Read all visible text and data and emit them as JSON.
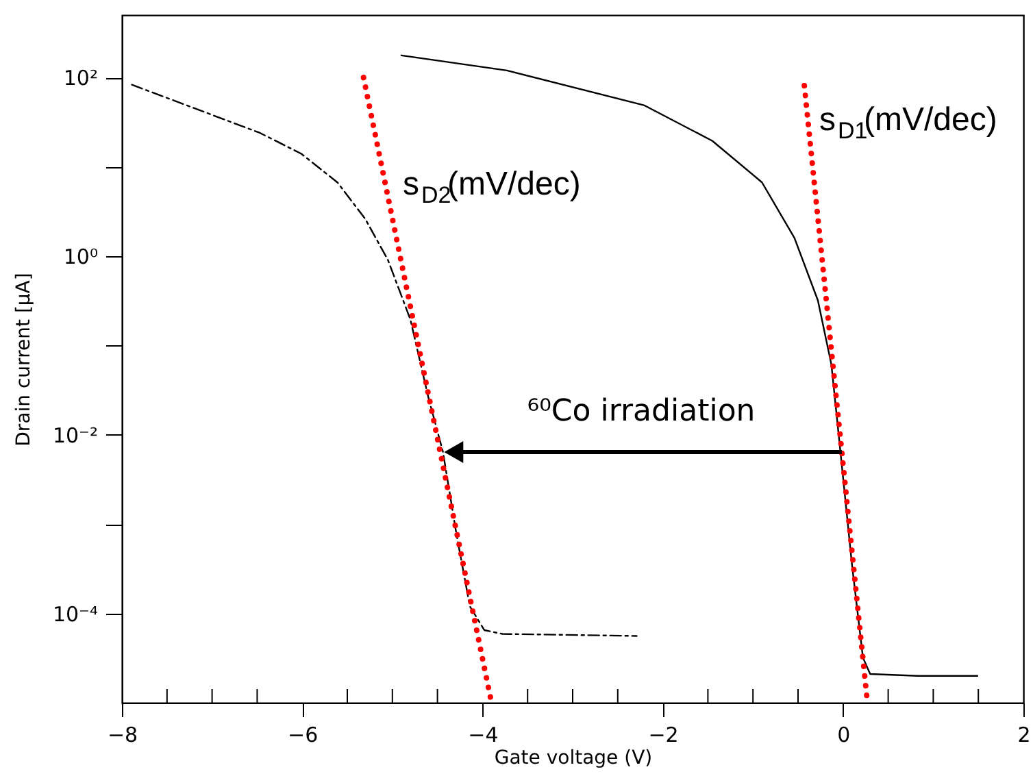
{
  "chart_data": {
    "type": "line",
    "xlabel": "Gate voltage (V)",
    "ylabel": "Drain current [μA]",
    "log": "y",
    "grid": false,
    "marker": "none",
    "xlim": [
      -8,
      2
    ],
    "ylim": [
      1e-05,
      500
    ],
    "xticks": [
      -8,
      {
        "value": -7.5,
        "label": null
      },
      {
        "value": -7,
        "label": null
      },
      {
        "value": -6.5,
        "label": null
      },
      -6,
      {
        "value": -5.5,
        "label": null
      },
      {
        "value": -5,
        "label": null
      },
      {
        "value": -4.5,
        "label": null
      },
      -4,
      {
        "value": -3.5,
        "label": null
      },
      {
        "value": -3,
        "label": null
      },
      {
        "value": -2.5,
        "label": null
      },
      -2,
      {
        "value": -1.5,
        "label": null
      },
      {
        "value": -1,
        "label": null
      },
      {
        "value": -0.5,
        "label": null
      },
      0,
      {
        "value": 0.5,
        "label": null
      },
      {
        "value": 1,
        "label": null
      },
      {
        "value": 1.5,
        "label": null
      },
      2
    ],
    "yticks": [
      {
        "value": 100,
        "label": "10²"
      },
      {
        "value": 10,
        "label": null
      },
      {
        "value": 1,
        "label": "10⁰"
      },
      {
        "value": 0.1,
        "label": null
      },
      {
        "value": 0.01,
        "label": "10⁻²"
      },
      {
        "value": 0.001,
        "label": null
      },
      {
        "value": 0.0001,
        "label": "10⁻⁴"
      }
    ],
    "series": [
      {
        "color": "#000000",
        "line_style": "solid",
        "x": [
          -4.9,
          -3.73,
          -2.21,
          -1.45,
          -0.9,
          -0.54,
          -0.28,
          -0.13,
          -0.03,
          0.1,
          0.22,
          0.3,
          0.83,
          1.49
        ],
        "values": [
          177,
          120,
          49,
          19.5,
          6.7,
          1.6,
          0.32,
          0.061,
          0.0065,
          0.00034,
          3.2e-05,
          2.1e-05,
          2e-05,
          2e-05
        ]
      },
      {
        "color": "#000000",
        "line_style": "dashed",
        "x": [
          -7.89,
          -6.47,
          -6.01,
          -5.61,
          -5.3,
          -5.05,
          -4.8,
          -4.6,
          -4.44,
          -4.29,
          -4.14,
          -3.98,
          -3.78,
          -2.29
        ],
        "values": [
          83,
          24,
          14,
          6.7,
          2.6,
          0.91,
          0.195,
          0.026,
          0.0065,
          0.00078,
          0.00012,
          6.5e-05,
          5.9e-05,
          5.6e-05
        ]
      },
      {
        "color": "#ff0000",
        "line_style": "dotted",
        "x": [
          -0.43,
          0.27
        ],
        "values": [
          81,
          1e-05
        ]
      },
      {
        "color": "#ff0000",
        "line_style": "dotted",
        "x": [
          -5.32,
          -3.9
        ],
        "values": [
          100,
          1e-05
        ]
      }
    ],
    "annotations": [
      "s$_{D1}$(mV/dec)",
      "s$_{D2}$(mV/dec)",
      "⁶⁰Co irradiation"
    ]
  }
}
